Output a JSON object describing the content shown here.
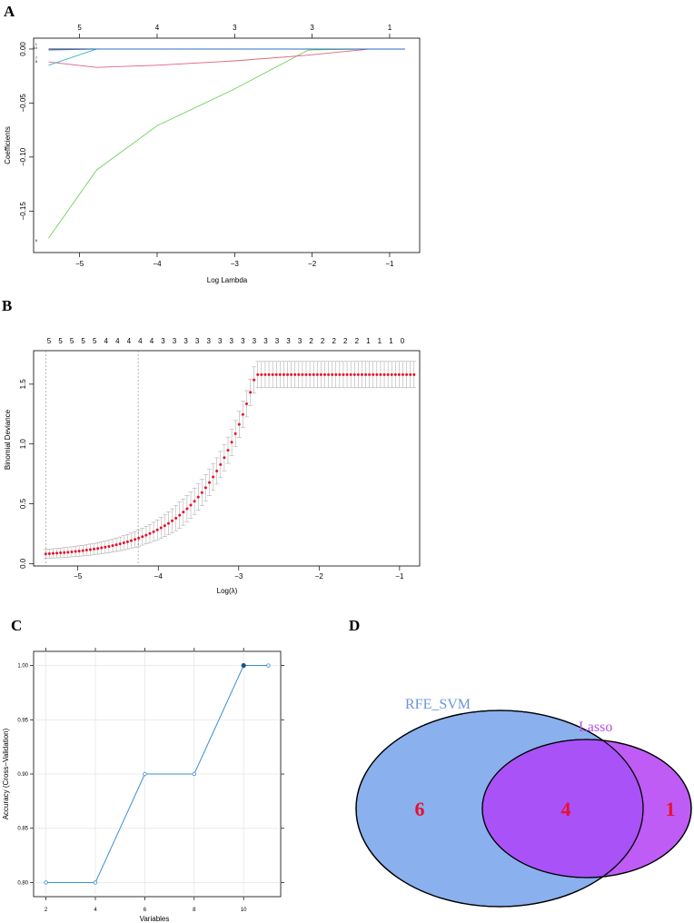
{
  "panels": {
    "A": "A",
    "B": "B",
    "C": "C",
    "D": "D"
  },
  "colors": {
    "red_dot": "#e8112d",
    "err_bar": "#a0a0a0",
    "accuracy_line": "#3d8fd1",
    "venn_rfe_fill": "#8ab0ee",
    "venn_lasso_fill": "#bf5cf5",
    "venn_overlap_fill": "#a852f7",
    "venn_rfe_text": "#6a96d8",
    "venn_lasso_text": "#b44fe8",
    "venn_count": "#e8112d"
  },
  "chart_data": [
    {
      "panel": "A",
      "type": "line",
      "xlabel": "Log Lambda",
      "ylabel": "Coefficients",
      "xlim": [
        -5.5,
        -0.8
      ],
      "ylim": [
        -0.18,
        0.005
      ],
      "x_ticks": [
        "−5",
        "−4",
        "−3",
        "−2",
        "−1"
      ],
      "x_tick_values": [
        -5,
        -4,
        -3,
        -2,
        -1
      ],
      "y_ticks": [
        "−0.15",
        "−0.10",
        "−0.05",
        "0.00"
      ],
      "y_tick_values": [
        -0.15,
        -0.1,
        -0.05,
        0.0
      ],
      "top_ticks": [
        "5",
        "4",
        "3",
        "3",
        "1"
      ],
      "top_tick_values": [
        -5,
        -4,
        -3,
        -2,
        -1
      ],
      "series": [
        {
          "label": "6",
          "color": "#6fd35a",
          "points": [
            [
              -5.4,
              -0.175
            ],
            [
              -4.78,
              -0.112
            ],
            [
              -4.0,
              -0.071
            ],
            [
              -3.0,
              -0.037
            ],
            [
              -2.05,
              -0.001
            ],
            [
              -1.25,
              0.0
            ],
            [
              -0.8,
              0.0
            ]
          ]
        },
        {
          "label": "7",
          "color": "#e0607e",
          "points": [
            [
              -5.4,
              -0.012
            ],
            [
              -4.78,
              -0.017
            ],
            [
              -4.0,
              -0.015
            ],
            [
              -3.0,
              -0.011
            ],
            [
              -2.1,
              -0.006
            ],
            [
              -1.25,
              0.0
            ],
            [
              -0.8,
              0.0
            ]
          ]
        },
        {
          "label": "8",
          "color": "#2fb6c8",
          "points": [
            [
              -5.4,
              -0.015
            ],
            [
              -4.78,
              0.0
            ],
            [
              -4.0,
              0.0
            ],
            [
              -0.8,
              0.0
            ]
          ]
        },
        {
          "label": "1",
          "color": "#333333",
          "points": [
            [
              -5.4,
              0.0
            ],
            [
              -0.8,
              0.0
            ]
          ]
        },
        {
          "label": "10",
          "color": "#2a6fd6",
          "points": [
            [
              -5.4,
              -0.001
            ],
            [
              -4.7,
              0.0
            ],
            [
              -0.8,
              0.0
            ]
          ]
        }
      ],
      "end_labels": [
        "1",
        "10",
        "7",
        "8",
        "6"
      ]
    },
    {
      "panel": "B",
      "type": "scatter",
      "xlabel": "Log(λ)",
      "ylabel": "Binomial Deviance",
      "xlim": [
        -5.55,
        -0.75
      ],
      "ylim": [
        -0.02,
        1.78
      ],
      "x_ticks": [
        "−5",
        "−4",
        "−3",
        "−2",
        "−1"
      ],
      "x_tick_values": [
        -5,
        -4,
        -3,
        -2,
        -1
      ],
      "y_ticks": [
        "0.0",
        "0.5",
        "1.0",
        "1.5"
      ],
      "y_tick_values": [
        0.0,
        0.5,
        1.0,
        1.5
      ],
      "top_labels": [
        "5",
        "5",
        "5",
        "5",
        "5",
        "4",
        "4",
        "4",
        "4",
        "4",
        "3",
        "3",
        "3",
        "3",
        "3",
        "3",
        "3",
        "3",
        "3",
        "3",
        "3",
        "3",
        "3",
        "2",
        "2",
        "2",
        "2",
        "2",
        "1",
        "1",
        "1",
        "0"
      ],
      "vlines": [
        -5.4,
        -4.25
      ],
      "x_start": -5.4,
      "x_end": -0.82,
      "n_points": 100,
      "curve_formula": "y = 0.055 + 0.026*exp(1.56*(x+5.4)) capped by observed end value 1.58"
    },
    {
      "panel": "C",
      "type": "line",
      "xlabel": "Variables",
      "ylabel": "Accuracy (Cross−Validation)",
      "xlim": [
        1.5,
        11.5
      ],
      "ylim": [
        0.787,
        1.013
      ],
      "x_ticks": [
        "2",
        "4",
        "6",
        "8",
        "10"
      ],
      "x_tick_values": [
        2,
        4,
        6,
        8,
        10
      ],
      "y_ticks": [
        "0.80",
        "0.85",
        "0.90",
        "0.95",
        "1.00"
      ],
      "y_tick_values": [
        0.8,
        0.85,
        0.9,
        0.95,
        1.0
      ],
      "x": [
        2,
        4,
        6,
        8,
        10,
        11
      ],
      "values": [
        0.8,
        0.8,
        0.9,
        0.9,
        1.0,
        1.0
      ],
      "best_index": 4
    },
    {
      "panel": "D",
      "type": "venn",
      "sets": [
        {
          "name": "RFE_SVM",
          "only": "6"
        },
        {
          "name": "Lasso",
          "only": "1"
        }
      ],
      "overlap": "4"
    }
  ]
}
